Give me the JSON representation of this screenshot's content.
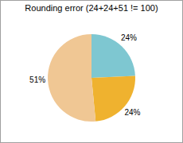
{
  "chart_data": {
    "type": "pie",
    "title": "Rounding error (24+24+51 != 100)",
    "values": [
      24,
      24,
      51
    ],
    "value_labels": [
      "24%",
      "24%",
      "51%"
    ],
    "colors": [
      "#7ec7d1",
      "#efb22f",
      "#f0c794"
    ],
    "data_labels": true
  }
}
